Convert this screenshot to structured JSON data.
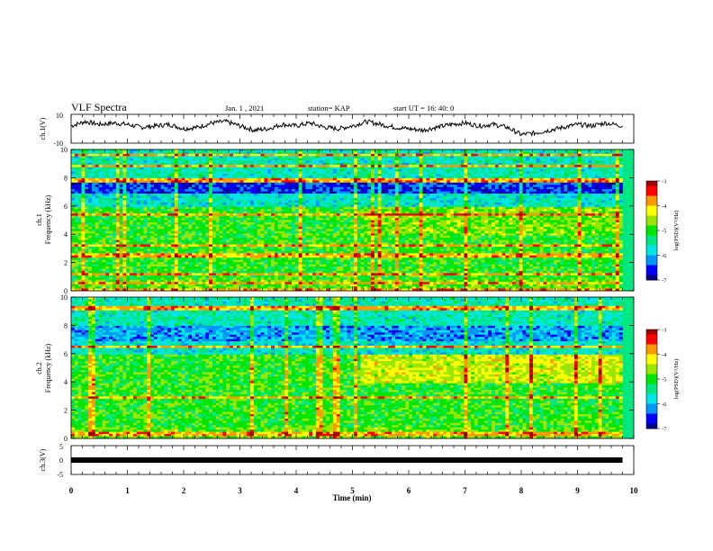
{
  "header": {
    "title": "VLF Spectra",
    "date": "Jan. 1 , 2021",
    "station": "station= KAP",
    "start": "start UT = 16: 40: 0"
  },
  "colors": {
    "colormap": [
      "#00008b",
      "#0000ff",
      "#0096ff",
      "#00e5e5",
      "#00e680",
      "#00e600",
      "#9be600",
      "#ffff00",
      "#ff9900",
      "#ff0000",
      "#a00000"
    ],
    "trace": "#000000"
  },
  "chart_data": [
    {
      "type": "line",
      "id": "ch1",
      "ylabel": "ch.1(V)",
      "ylim": [
        -10,
        10
      ],
      "yticks": [
        "10",
        "-10"
      ],
      "x_unit": "min",
      "x": [
        0,
        0.25,
        0.5,
        0.75,
        1,
        1.25,
        1.5,
        1.75,
        2,
        2.25,
        2.5,
        2.75,
        3,
        3.25,
        3.5,
        3.75,
        4,
        4.25,
        4.5,
        4.75,
        5,
        5.25,
        5.5,
        5.75,
        6,
        6.25,
        6.5,
        6.75,
        7,
        7.25,
        7.5,
        7.75,
        8,
        8.25,
        8.5,
        8.75,
        9,
        9.25,
        9.5,
        9.8
      ],
      "y": [
        2,
        5,
        3,
        4,
        3,
        1,
        2,
        3,
        0,
        1,
        4,
        5,
        2,
        -1,
        0,
        3,
        2,
        4,
        1,
        0,
        2,
        5,
        3,
        1,
        0,
        -1,
        1,
        3,
        4,
        2,
        3,
        1,
        -4,
        -3,
        -1,
        1,
        3,
        2,
        4,
        2
      ]
    },
    {
      "type": "heatmap",
      "id": "ch1-spectrogram",
      "ylabel": "ch.1\nFrequency (kHz)",
      "ylim": [
        0,
        10
      ],
      "yticks": [
        "0",
        "2",
        "4",
        "6",
        "8",
        "10"
      ],
      "colorbar": {
        "label": "log(PSD)(V²/Hz)",
        "range": [
          -7,
          -3
        ],
        "ticks": [
          "-3",
          "-4",
          "-5",
          "-6",
          "-7"
        ]
      }
    },
    {
      "type": "heatmap",
      "id": "ch2-spectrogram",
      "ylabel": "ch.2\nFrequency (kHz)",
      "ylim": [
        0,
        10
      ],
      "yticks": [
        "0",
        "2",
        "4",
        "6",
        "8",
        "10"
      ],
      "colorbar": {
        "label": "log(PSD)(V²/Hz)",
        "range": [
          -7,
          -3
        ],
        "ticks": [
          "-3",
          "-4",
          "-5",
          "-6",
          "-7"
        ]
      }
    },
    {
      "type": "line",
      "id": "ch3",
      "ylabel": "ch.3(V)",
      "ylim": [
        -5,
        5
      ],
      "yticks": [
        "5",
        "0",
        "-5"
      ],
      "x": [
        0,
        9.8
      ],
      "y": [
        -0.5,
        -0.5
      ]
    }
  ],
  "xaxis": {
    "label": "Time (min)",
    "ticks": [
      "0",
      "1",
      "2",
      "3",
      "4",
      "5",
      "6",
      "7",
      "8",
      "9",
      "10"
    ],
    "range": [
      0,
      10
    ]
  }
}
